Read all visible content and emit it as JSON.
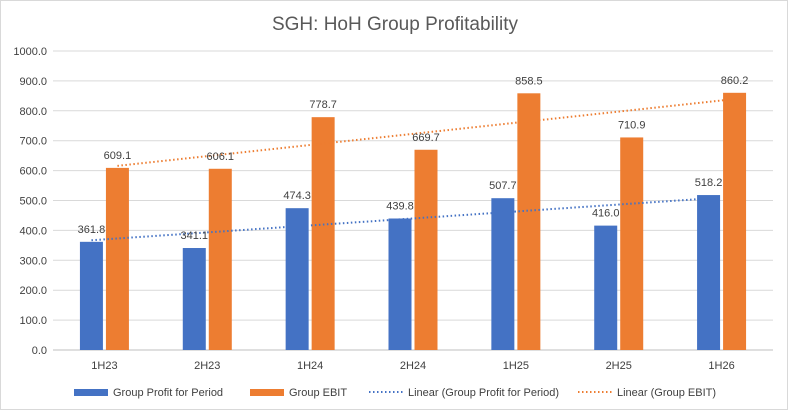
{
  "chart_data": {
    "type": "bar",
    "title": "SGH:  HoH Group Profitability",
    "categories": [
      "1H23",
      "2H23",
      "1H24",
      "2H24",
      "1H25",
      "2H25",
      "1H26"
    ],
    "series": [
      {
        "name": "Group Profit for Period",
        "color": "#4472c4",
        "values": [
          361.8,
          341.1,
          474.3,
          439.8,
          507.7,
          416.0,
          518.2
        ],
        "labels": [
          "361.8",
          "341.1",
          "474.3",
          "439.8",
          "507.7",
          "416.0",
          "518.2"
        ]
      },
      {
        "name": "Group EBIT",
        "color": "#ed7d31",
        "values": [
          609.1,
          606.1,
          778.7,
          669.7,
          858.5,
          710.9,
          860.2
        ],
        "labels": [
          "609.1",
          "606.1",
          "778.7",
          "669.7",
          "858.5",
          "710.9",
          "860.2"
        ]
      }
    ],
    "trendlines": [
      {
        "name": "Linear (Group Profit for Period)",
        "series": 0,
        "color": "#4472c4"
      },
      {
        "name": "Linear (Group EBIT)",
        "series": 1,
        "color": "#ed7d31"
      }
    ],
    "ylim": [
      0,
      1000
    ],
    "yticks": [
      0,
      100,
      200,
      300,
      400,
      500,
      600,
      700,
      800,
      900,
      1000
    ],
    "ytick_labels": [
      "0.0",
      "100.0",
      "200.0",
      "300.0",
      "400.0",
      "500.0",
      "600.0",
      "700.0",
      "800.0",
      "900.0",
      "1000.0"
    ],
    "grid": true,
    "legend": "bottom",
    "xlabel": "",
    "ylabel": ""
  }
}
